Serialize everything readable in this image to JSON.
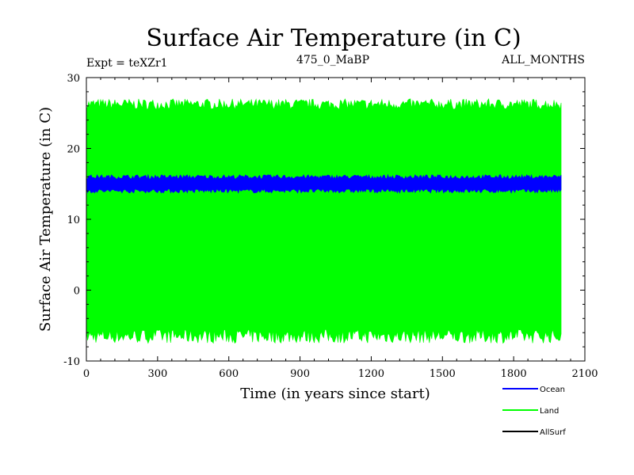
{
  "chart_data": {
    "type": "area",
    "title": "Surface Air Temperature (in C)",
    "subtitle_left": "Expt = teXZr1",
    "subtitle_center": "475_0_MaBP",
    "subtitle_right": "ALL_MONTHS",
    "xlabel": "Time (in years since start)",
    "ylabel": "Surface Air Temperature (in C)",
    "xlim": [
      0,
      2100
    ],
    "ylim": [
      -10,
      30
    ],
    "x_ticks": [
      0,
      300,
      600,
      900,
      1200,
      1500,
      1800,
      2100
    ],
    "y_ticks": [
      -10,
      0,
      10,
      20,
      30
    ],
    "x_tick_labels": [
      "0",
      "300",
      "600",
      "900",
      "1200",
      "1500",
      "1800",
      "2100"
    ],
    "y_tick_labels": [
      "-10",
      "0",
      "10",
      "20",
      "30"
    ],
    "x_data_range": [
      0,
      2000
    ],
    "series": [
      {
        "name": "Land",
        "color": "#00ff00",
        "range_min": [
          -7.5,
          -5.5
        ],
        "range_max": [
          25.5,
          27.0
        ],
        "mean_min": -6.3,
        "mean_max": 26.2
      },
      {
        "name": "Ocean",
        "color": "#0000ff",
        "range_min": [
          13.7,
          14.3
        ],
        "range_max": [
          15.7,
          16.3
        ],
        "mean_min": 14.1,
        "mean_max": 15.9
      },
      {
        "name": "AllSurf",
        "color": "#000000",
        "range_min": [
          null,
          null
        ],
        "range_max": [
          null,
          null
        ]
      }
    ],
    "legend": {
      "placement": "bottom-right",
      "entries": [
        {
          "label": "Ocean",
          "color": "#0000ff"
        },
        {
          "label": "Land",
          "color": "#00ff00"
        },
        {
          "label": "AllSurf",
          "color": "#000000"
        }
      ]
    }
  }
}
